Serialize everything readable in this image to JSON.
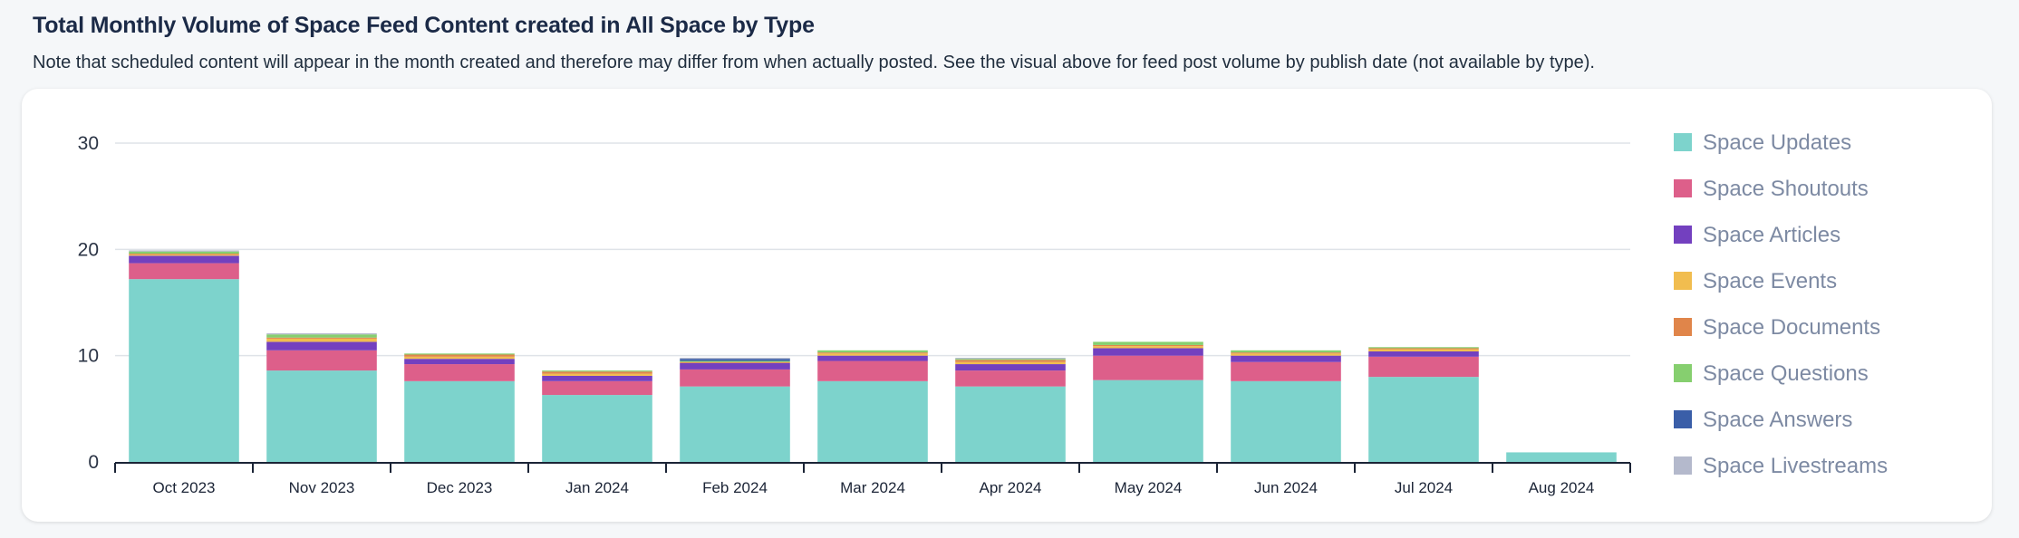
{
  "header": {
    "title": "Total Monthly Volume of Space Feed Content created in All Space by Type",
    "subtitle": "Note that scheduled content will appear in the month created and therefore may differ from when actually posted. See the visual above for feed post volume by publish date (not available by type)."
  },
  "chart_data": {
    "type": "bar",
    "stacked": true,
    "categories": [
      "Oct 2023",
      "Nov 2023",
      "Dec 2023",
      "Jan 2024",
      "Feb 2024",
      "Mar 2024",
      "Apr 2024",
      "May 2024",
      "Jun 2024",
      "Jul 2024",
      "Aug 2024"
    ],
    "ylim": [
      0,
      30
    ],
    "yticks": [
      0,
      10,
      20,
      30
    ],
    "grid": true,
    "legend_position": "right",
    "series": [
      {
        "name": "Space Updates",
        "color": "#7dd3cc",
        "values": [
          17.2,
          8.6,
          7.6,
          6.3,
          7.1,
          7.6,
          7.1,
          7.7,
          7.6,
          8.0,
          0.9
        ]
      },
      {
        "name": "Space Shoutouts",
        "color": "#dd5f8a",
        "values": [
          1.5,
          1.9,
          1.6,
          1.3,
          1.6,
          1.9,
          1.5,
          2.3,
          1.8,
          1.9,
          0
        ]
      },
      {
        "name": "Space Articles",
        "color": "#7340bf",
        "values": [
          0.7,
          0.8,
          0.5,
          0.5,
          0.6,
          0.5,
          0.6,
          0.7,
          0.6,
          0.5,
          0
        ]
      },
      {
        "name": "Space Events",
        "color": "#f1bd4f",
        "values": [
          0.1,
          0.3,
          0.2,
          0.2,
          0,
          0.2,
          0.2,
          0.2,
          0.2,
          0.2,
          0
        ]
      },
      {
        "name": "Space Documents",
        "color": "#e0854a",
        "values": [
          0.1,
          0.1,
          0.2,
          0.2,
          0.1,
          0.1,
          0.2,
          0.1,
          0.1,
          0.1,
          0
        ]
      },
      {
        "name": "Space Questions",
        "color": "#86cf6f",
        "values": [
          0.2,
          0.3,
          0.1,
          0.1,
          0.1,
          0.2,
          0.1,
          0.3,
          0.2,
          0.1,
          0
        ]
      },
      {
        "name": "Space Answers",
        "color": "#3a5ea8",
        "values": [
          0,
          0,
          0,
          0,
          0.2,
          0,
          0,
          0,
          0,
          0,
          0
        ]
      },
      {
        "name": "Space Livestreams",
        "color": "#b4b9cc",
        "values": [
          0.1,
          0.1,
          0,
          0,
          0.1,
          0,
          0.1,
          0,
          0,
          0,
          0
        ]
      }
    ]
  }
}
